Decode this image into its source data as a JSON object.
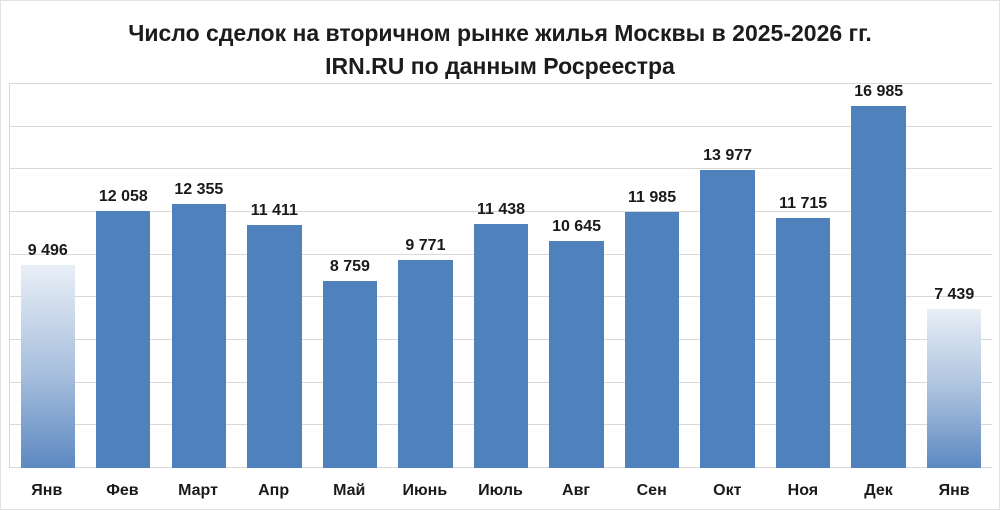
{
  "title": {
    "line1": "Число сделок на вторичном рынке жилья Москвы в 2025-2026 гг.",
    "line2": "IRN.RU по данным Росреестра"
  },
  "chart_data": {
    "type": "bar",
    "title": "Число сделок на вторичном рынке жилья Москвы в 2025-2026 гг. IRN.RU по данным Росреестра",
    "categories": [
      "Янв",
      "Фев",
      "Март",
      "Апр",
      "Май",
      "Июнь",
      "Июль",
      "Авг",
      "Сен",
      "Окт",
      "Ноя",
      "Дек",
      "Янв"
    ],
    "values": [
      9496,
      12058,
      12355,
      11411,
      8759,
      9771,
      11438,
      10645,
      11985,
      13977,
      11715,
      16985,
      7439
    ],
    "data_labels": [
      "9 496",
      "12 058",
      "12 355",
      "11 411",
      "8 759",
      "9 771",
      "11 438",
      "10 645",
      "11 985",
      "13 977",
      "11 715",
      "16 985",
      "7 439"
    ],
    "xlabel": "",
    "ylabel": "",
    "ylim": [
      0,
      18000
    ],
    "gridline_step": 2000,
    "grid": true,
    "legend": false,
    "y_tick_labels_visible": false,
    "bar_styles": [
      "gradient",
      "solid",
      "solid",
      "solid",
      "solid",
      "solid",
      "solid",
      "solid",
      "solid",
      "solid",
      "solid",
      "solid",
      "gradient"
    ],
    "colors": {
      "bar_solid": "#4f81bd",
      "bar_gradient_top": "#e9eff7",
      "bar_gradient_mid": "#a9c0dd",
      "bar_gradient_bottom": "#5d89c2",
      "gridline": "#d9d9d9",
      "text": "#1a1a1a",
      "background": "#ffffff"
    }
  }
}
